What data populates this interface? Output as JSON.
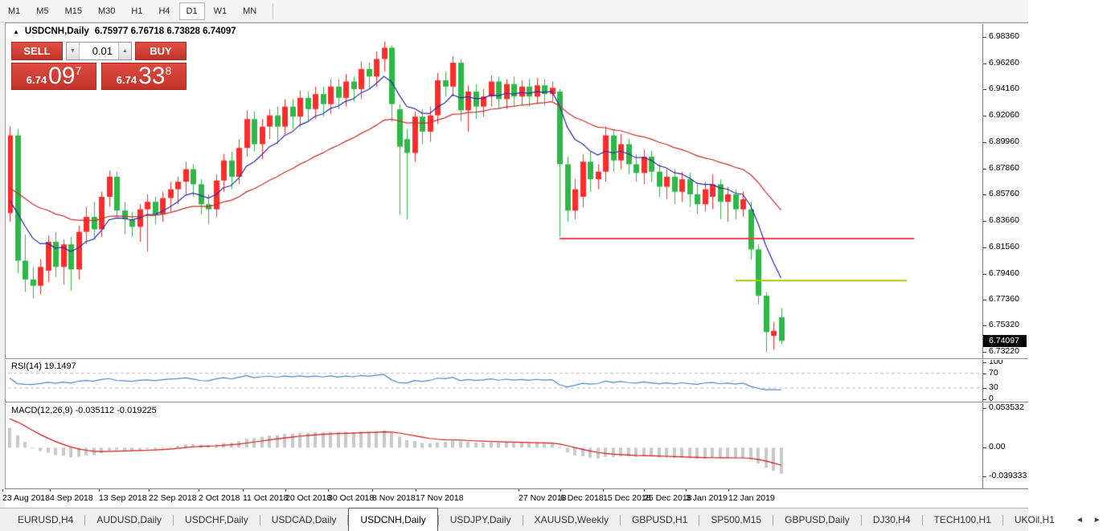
{
  "icons": {
    "triangle_up": "▲",
    "triangle_down": "▼",
    "collapse": "▲",
    "scroll_left": "◄",
    "scroll_right": "►"
  },
  "timeframe_toolbar": {
    "buttons": [
      "M1",
      "M5",
      "M15",
      "M30",
      "H1",
      "H4",
      "D1",
      "W1",
      "MN"
    ],
    "active": "D1"
  },
  "chart": {
    "title": "USDCNH,Daily",
    "ohlc": "6.75977 6.76718 6.73828 6.74097",
    "trade": {
      "sell": "SELL",
      "buy": "BUY",
      "volume": "0.01",
      "sell_price": {
        "small": "6.74",
        "big": "09",
        "sup": "7"
      },
      "buy_price": {
        "small": "6.74",
        "big": "33",
        "sup": "8"
      }
    },
    "current_price": "6.74097"
  },
  "chart_data": {
    "type": "candlestick",
    "symbol": "USDCNH",
    "timeframe": "Daily",
    "title": "USDCNH,Daily 6.75977 6.76718 6.73828 6.74097",
    "current_ohlc": {
      "open": 6.75977,
      "high": 6.76718,
      "low": 6.73828,
      "close": 6.74097
    },
    "ylim": [
      6.725,
      6.99
    ],
    "grid": "off",
    "price_axis": [
      "6.98360",
      "6.96260",
      "6.94160",
      "6.92060",
      "6.89960",
      "6.87860",
      "6.85760",
      "6.83660",
      "6.81560",
      "6.79460",
      "6.77360",
      "6.75320",
      "6.73220"
    ],
    "date_axis": {
      "labels": [
        "23 Aug 2018",
        "4 Sep 2018",
        "13 Sep 2018",
        "22 Sep 2018",
        "2 Oct 2018",
        "11 Oct 2018",
        "20 Oct 2018",
        "30 Oct 2018",
        "8 Nov 2018",
        "17 Nov 2018",
        "27 Nov 2018",
        "6 Dec 2018",
        "15 Dec 2018",
        "25 Dec 2018",
        "3 Jan 2019",
        "12 Jan 2019"
      ],
      "x": [
        3,
        62,
        123,
        185,
        247,
        302,
        355,
        408,
        463,
        517,
        645,
        697,
        750,
        801,
        853,
        906
      ]
    },
    "candles": [
      [
        6.843,
        6.912,
        6.836,
        6.905
      ],
      [
        6.905,
        6.91,
        6.795,
        6.805
      ],
      [
        6.805,
        6.826,
        6.78,
        6.79
      ],
      [
        6.79,
        6.8,
        6.775,
        6.785
      ],
      [
        6.785,
        6.806,
        6.778,
        6.8
      ],
      [
        6.797,
        6.825,
        6.788,
        6.82
      ],
      [
        6.82,
        6.828,
        6.792,
        6.8
      ],
      [
        6.8,
        6.822,
        6.786,
        6.818
      ],
      [
        6.818,
        6.824,
        6.781,
        6.798
      ],
      [
        6.798,
        6.833,
        6.79,
        6.828
      ],
      [
        6.828,
        6.848,
        6.818,
        6.84
      ],
      [
        6.84,
        6.852,
        6.822,
        6.83
      ],
      [
        6.83,
        6.86,
        6.824,
        6.856
      ],
      [
        6.856,
        6.877,
        6.848,
        6.872
      ],
      [
        6.872,
        6.876,
        6.84,
        6.845
      ],
      [
        6.845,
        6.852,
        6.826,
        6.838
      ],
      [
        6.838,
        6.844,
        6.824,
        6.832
      ],
      [
        6.832,
        6.85,
        6.82,
        6.846
      ],
      [
        6.846,
        6.858,
        6.812,
        6.852
      ],
      [
        6.852,
        6.856,
        6.834,
        6.842
      ],
      [
        6.842,
        6.86,
        6.836,
        6.855
      ],
      [
        6.855,
        6.868,
        6.844,
        6.862
      ],
      [
        6.862,
        6.872,
        6.85,
        6.868
      ],
      [
        6.868,
        6.884,
        6.858,
        6.878
      ],
      [
        6.878,
        6.882,
        6.856,
        6.866
      ],
      [
        6.866,
        6.87,
        6.842,
        6.85
      ],
      [
        6.85,
        6.858,
        6.834,
        6.846
      ],
      [
        6.846,
        6.874,
        6.84,
        6.869
      ],
      [
        6.869,
        6.89,
        6.86,
        6.885
      ],
      [
        6.885,
        6.892,
        6.862,
        6.872
      ],
      [
        6.872,
        6.902,
        6.866,
        6.895
      ],
      [
        6.895,
        6.925,
        6.888,
        6.918
      ],
      [
        6.918,
        6.924,
        6.892,
        6.898
      ],
      [
        6.898,
        6.918,
        6.886,
        6.912
      ],
      [
        6.912,
        6.926,
        6.902,
        6.921
      ],
      [
        6.921,
        6.928,
        6.898,
        6.912
      ],
      [
        6.912,
        6.934,
        6.906,
        6.928
      ],
      [
        6.928,
        6.934,
        6.91,
        6.92
      ],
      [
        6.92,
        6.941,
        6.912,
        6.935
      ],
      [
        6.935,
        6.94,
        6.916,
        6.926
      ],
      [
        6.926,
        6.944,
        6.918,
        6.938
      ],
      [
        6.938,
        6.944,
        6.92,
        6.93
      ],
      [
        6.93,
        6.95,
        6.922,
        6.944
      ],
      [
        6.944,
        6.95,
        6.926,
        6.935
      ],
      [
        6.935,
        6.954,
        6.928,
        6.948
      ],
      [
        6.948,
        6.952,
        6.932,
        6.942
      ],
      [
        6.942,
        6.964,
        6.934,
        6.958
      ],
      [
        6.958,
        6.963,
        6.942,
        6.952
      ],
      [
        6.952,
        6.972,
        6.944,
        6.966
      ],
      [
        6.966,
        6.98,
        6.956,
        6.975
      ],
      [
        6.975,
        6.977,
        6.916,
        6.93
      ],
      [
        6.926,
        6.93,
        6.842,
        6.896
      ],
      [
        6.902,
        6.91,
        6.838,
        6.891
      ],
      [
        6.891,
        6.924,
        6.884,
        6.92
      ],
      [
        6.92,
        6.926,
        6.898,
        6.908
      ],
      [
        6.908,
        6.928,
        6.9,
        6.921
      ],
      [
        6.921,
        6.955,
        6.914,
        6.949
      ],
      [
        6.949,
        6.956,
        6.936,
        6.944
      ],
      [
        6.944,
        6.968,
        6.936,
        6.963
      ],
      [
        6.963,
        6.966,
        6.916,
        6.925
      ],
      [
        6.925,
        6.945,
        6.908,
        6.94
      ],
      [
        6.94,
        6.946,
        6.918,
        6.928
      ],
      [
        6.928,
        6.942,
        6.92,
        6.936
      ],
      [
        6.936,
        6.953,
        6.928,
        6.948
      ],
      [
        6.948,
        6.952,
        6.926,
        6.934
      ],
      [
        6.934,
        6.95,
        6.926,
        6.946
      ],
      [
        6.946,
        6.952,
        6.928,
        6.936
      ],
      [
        6.936,
        6.949,
        6.929,
        6.944
      ],
      [
        6.944,
        6.95,
        6.928,
        6.936
      ],
      [
        6.936,
        6.951,
        6.93,
        6.945
      ],
      [
        6.945,
        6.95,
        6.929,
        6.938
      ],
      [
        6.938,
        6.948,
        6.932,
        6.943
      ],
      [
        6.94,
        6.942,
        6.824,
        6.882
      ],
      [
        6.882,
        6.888,
        6.836,
        6.845
      ],
      [
        6.845,
        6.87,
        6.838,
        6.862
      ],
      [
        6.856,
        6.89,
        6.848,
        6.884
      ],
      [
        6.884,
        6.892,
        6.86,
        6.87
      ],
      [
        6.87,
        6.882,
        6.862,
        6.876
      ],
      [
        6.876,
        6.912,
        6.868,
        6.905
      ],
      [
        6.905,
        6.91,
        6.876,
        6.885
      ],
      [
        6.885,
        6.906,
        6.878,
        6.898
      ],
      [
        6.898,
        6.902,
        6.874,
        6.882
      ],
      [
        6.882,
        6.89,
        6.868,
        6.875
      ],
      [
        6.875,
        6.894,
        6.866,
        6.888
      ],
      [
        6.888,
        6.893,
        6.868,
        6.876
      ],
      [
        6.876,
        6.882,
        6.856,
        6.864
      ],
      [
        6.864,
        6.878,
        6.854,
        6.872
      ],
      [
        6.872,
        6.878,
        6.85,
        6.86
      ],
      [
        6.86,
        6.876,
        6.852,
        6.87
      ],
      [
        6.87,
        6.875,
        6.848,
        6.858
      ],
      [
        6.858,
        6.866,
        6.842,
        6.85
      ],
      [
        6.85,
        6.868,
        6.844,
        6.862
      ],
      [
        6.856,
        6.874,
        6.846,
        6.866
      ],
      [
        6.866,
        6.87,
        6.838,
        6.852
      ],
      [
        6.852,
        6.864,
        6.836,
        6.858
      ],
      [
        6.858,
        6.862,
        6.838,
        6.846
      ],
      [
        6.846,
        6.86,
        6.84,
        6.854
      ],
      [
        6.846,
        6.852,
        6.806,
        6.814
      ],
      [
        6.814,
        6.818,
        6.77,
        6.777
      ],
      [
        6.777,
        6.78,
        6.732,
        6.748
      ],
      [
        6.745,
        6.756,
        6.734,
        6.749
      ],
      [
        6.75977,
        6.76718,
        6.73828,
        6.74097
      ]
    ],
    "hlines": [
      {
        "name": "resistance-line",
        "price": 6.8226,
        "x1": 696,
        "x2": 1137,
        "color": "#f04545",
        "width": 2
      },
      {
        "name": "target-line",
        "price": 6.7892,
        "x1": 915,
        "x2": 1128,
        "color": "#b2c400",
        "width": 2
      }
    ],
    "moving_averages": [
      {
        "name": "ma-fast",
        "color": "#2b2ba6"
      },
      {
        "name": "ma-slow",
        "color": "#cc2e2e"
      }
    ],
    "colors": {
      "up": "#ff2c2c",
      "down": "#2db847",
      "rsi_line": "#4d86c4",
      "rsi_levels": "#bcbcbc",
      "macd_bar": "#c9c9c9",
      "macd_signal": "#d01818"
    },
    "indicators": {
      "rsi": {
        "label": "RSI(14) 19.1497",
        "period": 14,
        "value": "19.1497",
        "levels": [
          100,
          70,
          30,
          0
        ],
        "overbought": 70,
        "oversold": 30
      },
      "macd": {
        "label": "MACD(12,26,9) -0.035112 -0.019225",
        "params": "12,26,9",
        "main": "-0.035112",
        "signal": "-0.019225",
        "axis": [
          "0.053532",
          "0.00",
          "-0.039333"
        ]
      }
    }
  },
  "tabs": {
    "items": [
      "EURUSD,H4",
      "AUDUSD,Daily",
      "USDCHF,Daily",
      "USDCAD,Daily",
      "USDCNH,Daily",
      "USDJPY,Daily",
      "XAUUSD,Weekly",
      "GBPUSD,H1",
      "SP500,M15",
      "GBPUSD,Daily",
      "DJ30,H4",
      "TECH100,H1",
      "UKOil,H1"
    ],
    "active": "USDCNH,Daily"
  }
}
